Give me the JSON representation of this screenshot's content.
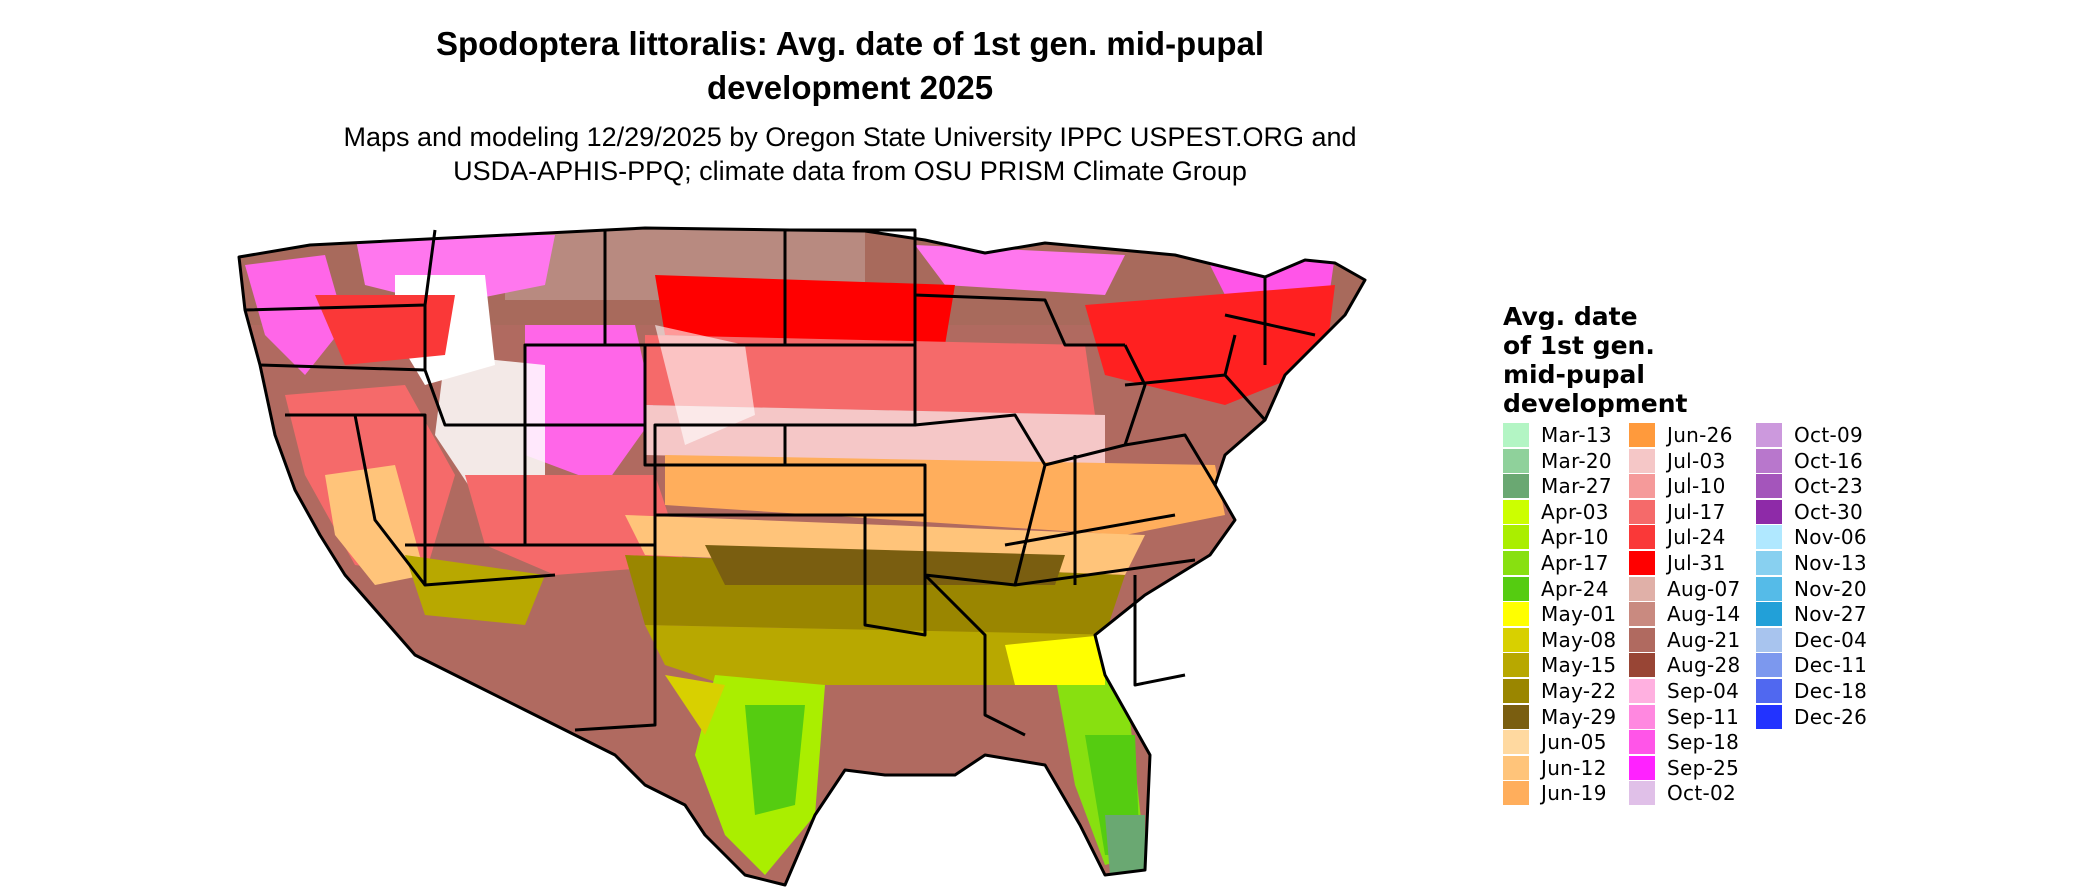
{
  "title_line1": "Spodoptera littoralis: Avg. date of 1st gen. mid-pupal",
  "title_line2": "development 2025",
  "subtitle_line1": "Maps and modeling 12/29/2025 by Oregon State University IPPC USPEST.ORG and",
  "subtitle_line2": "USDA-APHIS-PPQ; climate data from OSU PRISM Climate Group",
  "legend": {
    "title_lines": [
      "Avg. date",
      "of 1st gen.",
      "mid-pupal",
      "development"
    ],
    "columns": [
      [
        {
          "label": "Mar-13",
          "color": "#b3f5c4"
        },
        {
          "label": "Mar-20",
          "color": "#8fd19b"
        },
        {
          "label": "Mar-27",
          "color": "#6aa872"
        },
        {
          "label": "Apr-03",
          "color": "#ccff00"
        },
        {
          "label": "Apr-10",
          "color": "#aaee00"
        },
        {
          "label": "Apr-17",
          "color": "#88e010"
        },
        {
          "label": "Apr-24",
          "color": "#55cc11"
        },
        {
          "label": "May-01",
          "color": "#ffff00"
        },
        {
          "label": "May-08",
          "color": "#d8d000"
        },
        {
          "label": "May-15",
          "color": "#b8a800"
        },
        {
          "label": "May-22",
          "color": "#9a8600"
        },
        {
          "label": "May-29",
          "color": "#7a5e10"
        },
        {
          "label": "Jun-05",
          "color": "#ffd9a0"
        },
        {
          "label": "Jun-12",
          "color": "#ffc47a"
        },
        {
          "label": "Jun-19",
          "color": "#ffae5c"
        }
      ],
      [
        {
          "label": "Jun-26",
          "color": "#ff9a3c"
        },
        {
          "label": "Jul-03",
          "color": "#f5c7c7"
        },
        {
          "label": "Jul-10",
          "color": "#f59a9a"
        },
        {
          "label": "Jul-17",
          "color": "#f56a6a"
        },
        {
          "label": "Jul-24",
          "color": "#fa3838"
        },
        {
          "label": "Jul-31",
          "color": "#ff0000"
        },
        {
          "label": "Aug-07",
          "color": "#e0b0a8"
        },
        {
          "label": "Aug-14",
          "color": "#c98a80"
        },
        {
          "label": "Aug-21",
          "color": "#b06a60"
        },
        {
          "label": "Aug-28",
          "color": "#984535"
        },
        {
          "label": "Sep-04",
          "color": "#ffb0e0"
        },
        {
          "label": "Sep-11",
          "color": "#ff88e0"
        },
        {
          "label": "Sep-18",
          "color": "#ff55e8"
        },
        {
          "label": "Sep-25",
          "color": "#ff22ff"
        },
        {
          "label": "Oct-02",
          "color": "#e0c0e8"
        }
      ],
      [
        {
          "label": "Oct-09",
          "color": "#cc99dd"
        },
        {
          "label": "Oct-16",
          "color": "#b877cc"
        },
        {
          "label": "Oct-23",
          "color": "#a455bb"
        },
        {
          "label": "Oct-30",
          "color": "#8e2aa8"
        },
        {
          "label": "Nov-06",
          "color": "#b0e8ff"
        },
        {
          "label": "Nov-13",
          "color": "#88d0f0"
        },
        {
          "label": "Nov-20",
          "color": "#55bbe8"
        },
        {
          "label": "Nov-27",
          "color": "#22a0d8"
        },
        {
          "label": "Dec-04",
          "color": "#a8c4ee"
        },
        {
          "label": "Dec-11",
          "color": "#7c98ee"
        },
        {
          "label": "Dec-18",
          "color": "#5068f0"
        },
        {
          "label": "Dec-26",
          "color": "#2233ff"
        }
      ]
    ]
  }
}
